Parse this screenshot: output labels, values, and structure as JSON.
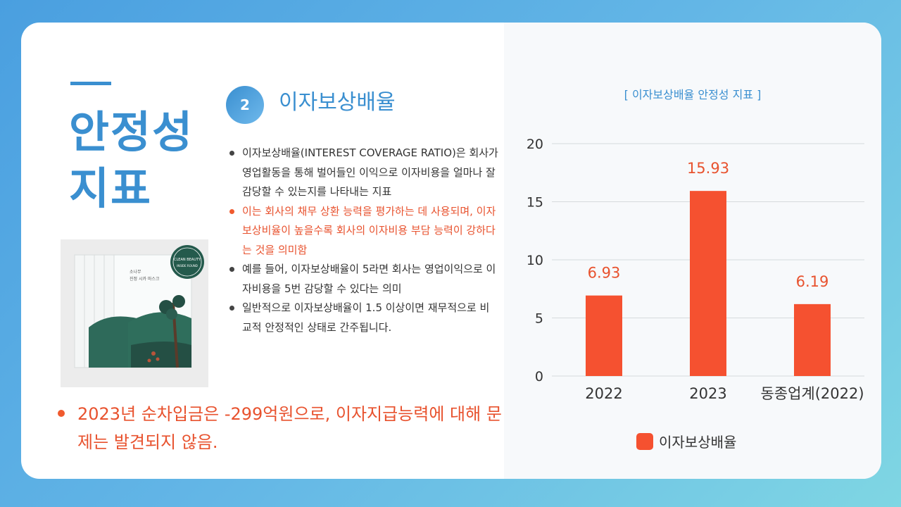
{
  "slide": {
    "heading_line1": "안정성",
    "heading_line2": "지표",
    "section_number": "2",
    "section_title": "이자보상배율",
    "bullets": [
      "이자보상배율(INTEREST COVERAGE RATIO)은 회사가 영업활동을 통해 벌어들인 이익으로 이자비용을 얼마나 잘 감당할 수 있는지를 나타내는 지표",
      "이는 회사의 채무 상환 능력을 평가하는 데 사용되며, 이자보상비율이 높을수록 회사의 이자비용 부담 능력이 강하다는 것을 의미함",
      "예를 들어, 이자보상배율이 5라면 회사는 영업이익으로 이자비용을 5번 감당할 수 있다는 의미",
      "일반적으로 이자보상배율이 1.5 이상이면 재무적으로 비교적 안정적인 상태로 간주됩니다."
    ],
    "bottom_note": "2023년 순차입금은 -299억원으로, 이자지급능력에 대해 문제는 발견되지 않음."
  },
  "product_image": {
    "badge_text": "CLEAN BEAUTY",
    "badge_subtext": "INSIDE ROUND",
    "package_brand": "소나무",
    "package_name": "진정 시카 마스크"
  },
  "colors": {
    "accent_blue": "#3a8fd0",
    "accent_red": "#f05a2e",
    "bar_color": "#f55130"
  },
  "chart_data": {
    "type": "bar",
    "title": "[ 이자보상배율 안정성 지표 ]",
    "categories": [
      "2022",
      "2023",
      "동종업계(2022)"
    ],
    "series": [
      {
        "name": "이자보상배율",
        "values": [
          6.93,
          15.93,
          6.19
        ],
        "labels": [
          "6.93",
          "15.93",
          "6.19"
        ]
      }
    ],
    "ylim": [
      0,
      20
    ],
    "yticks": [
      0,
      5,
      10,
      15,
      20
    ],
    "ytick_labels": [
      "0",
      "5",
      "10",
      "15",
      "20"
    ],
    "xlabel": "",
    "ylabel": "",
    "legend_position": "bottom",
    "grid": true
  }
}
